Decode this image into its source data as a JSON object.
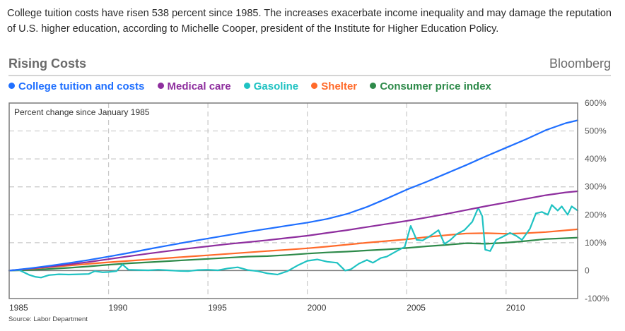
{
  "intro_text": "College tuition costs have risen 538 percent since 1985. The increases exacerbate income inequality and may damage the reputation of U.S. higher education, according to Michelle Cooper, president of the Institute for Higher Education Policy.",
  "header": {
    "title": "Rising Costs",
    "brand": "Bloomberg"
  },
  "source": "Source: Labor Department",
  "chart_data": {
    "type": "line",
    "title": "Rising Costs",
    "subtitle": "Percent change since January 1985",
    "xlabel": "",
    "ylabel": "Percent change since January 1985",
    "xlim": [
      1985,
      2013.6
    ],
    "ylim": [
      -100,
      600
    ],
    "x_ticks": [
      1985,
      1990,
      1995,
      2000,
      2005,
      2010
    ],
    "x_tick_labels": [
      "1985",
      "1990",
      "1995",
      "2000",
      "2005",
      "2010"
    ],
    "y_ticks": [
      600,
      500,
      400,
      300,
      200,
      100,
      0,
      -100
    ],
    "y_tick_labels": [
      "600%",
      "500%",
      "400%",
      "300%",
      "200%",
      "100%",
      "0",
      "-100%"
    ],
    "grid": true,
    "y_axis_side": "right",
    "legend_position": "top",
    "series": [
      {
        "name": "College tuition and costs",
        "color": "#1f6fff",
        "points": [
          [
            1985,
            0
          ],
          [
            1986,
            8
          ],
          [
            1987,
            17
          ],
          [
            1988,
            27
          ],
          [
            1989,
            38
          ],
          [
            1990,
            50
          ],
          [
            1991,
            63
          ],
          [
            1992,
            77
          ],
          [
            1993,
            90
          ],
          [
            1994,
            103
          ],
          [
            1995,
            115
          ],
          [
            1996,
            127
          ],
          [
            1997,
            139
          ],
          [
            1998,
            150
          ],
          [
            1999,
            161
          ],
          [
            2000,
            172
          ],
          [
            2001,
            185
          ],
          [
            2002,
            203
          ],
          [
            2003,
            228
          ],
          [
            2004,
            258
          ],
          [
            2005,
            290
          ],
          [
            2006,
            318
          ],
          [
            2007,
            348
          ],
          [
            2008,
            378
          ],
          [
            2009,
            410
          ],
          [
            2010,
            440
          ],
          [
            2011,
            470
          ],
          [
            2012,
            503
          ],
          [
            2013,
            528
          ],
          [
            2013.6,
            538
          ]
        ]
      },
      {
        "name": "Medical care",
        "color": "#8e2e9e",
        "points": [
          [
            1985,
            0
          ],
          [
            1986,
            7
          ],
          [
            1987,
            14
          ],
          [
            1988,
            22
          ],
          [
            1989,
            31
          ],
          [
            1990,
            41
          ],
          [
            1991,
            51
          ],
          [
            1992,
            61
          ],
          [
            1993,
            70
          ],
          [
            1994,
            79
          ],
          [
            1995,
            87
          ],
          [
            1996,
            95
          ],
          [
            1997,
            102
          ],
          [
            1998,
            109
          ],
          [
            1999,
            117
          ],
          [
            2000,
            125
          ],
          [
            2001,
            135
          ],
          [
            2002,
            145
          ],
          [
            2003,
            156
          ],
          [
            2004,
            167
          ],
          [
            2005,
            178
          ],
          [
            2006,
            190
          ],
          [
            2007,
            203
          ],
          [
            2008,
            217
          ],
          [
            2009,
            231
          ],
          [
            2010,
            244
          ],
          [
            2011,
            257
          ],
          [
            2012,
            270
          ],
          [
            2013,
            280
          ],
          [
            2013.6,
            284
          ]
        ]
      },
      {
        "name": "Gasoline",
        "color": "#1fc2c2",
        "points": [
          [
            1985,
            0
          ],
          [
            1985.5,
            2
          ],
          [
            1986,
            -15
          ],
          [
            1986.3,
            -22
          ],
          [
            1986.6,
            -25
          ],
          [
            1987,
            -16
          ],
          [
            1987.5,
            -13
          ],
          [
            1988,
            -14
          ],
          [
            1988.5,
            -13
          ],
          [
            1989,
            -12
          ],
          [
            1989.3,
            -2
          ],
          [
            1989.7,
            -6
          ],
          [
            1990,
            -5
          ],
          [
            1990.4,
            -2
          ],
          [
            1990.7,
            22
          ],
          [
            1991,
            3
          ],
          [
            1991.5,
            2
          ],
          [
            1992,
            1
          ],
          [
            1992.5,
            3
          ],
          [
            1993,
            1
          ],
          [
            1993.5,
            -1
          ],
          [
            1994,
            -2
          ],
          [
            1994.5,
            2
          ],
          [
            1995,
            3
          ],
          [
            1995.5,
            1
          ],
          [
            1996,
            8
          ],
          [
            1996.5,
            12
          ],
          [
            1997,
            2
          ],
          [
            1997.5,
            -2
          ],
          [
            1998,
            -10
          ],
          [
            1998.5,
            -14
          ],
          [
            1999,
            -2
          ],
          [
            1999.5,
            18
          ],
          [
            2000,
            35
          ],
          [
            2000.5,
            40
          ],
          [
            2001,
            32
          ],
          [
            2001.5,
            28
          ],
          [
            2001.9,
            0
          ],
          [
            2002.2,
            5
          ],
          [
            2002.6,
            25
          ],
          [
            2003,
            38
          ],
          [
            2003.3,
            28
          ],
          [
            2003.7,
            45
          ],
          [
            2004,
            50
          ],
          [
            2004.5,
            70
          ],
          [
            2004.9,
            85
          ],
          [
            2005.2,
            160
          ],
          [
            2005.5,
            110
          ],
          [
            2005.8,
            108
          ],
          [
            2006.2,
            125
          ],
          [
            2006.6,
            145
          ],
          [
            2006.9,
            95
          ],
          [
            2007.2,
            110
          ],
          [
            2007.5,
            130
          ],
          [
            2007.9,
            145
          ],
          [
            2008.3,
            175
          ],
          [
            2008.6,
            225
          ],
          [
            2008.8,
            195
          ],
          [
            2008.95,
            75
          ],
          [
            2009.2,
            70
          ],
          [
            2009.5,
            110
          ],
          [
            2009.8,
            120
          ],
          [
            2010.2,
            135
          ],
          [
            2010.5,
            125
          ],
          [
            2010.8,
            110
          ],
          [
            2011.2,
            150
          ],
          [
            2011.5,
            205
          ],
          [
            2011.8,
            210
          ],
          [
            2012.1,
            200
          ],
          [
            2012.3,
            235
          ],
          [
            2012.6,
            215
          ],
          [
            2012.8,
            230
          ],
          [
            2013.1,
            200
          ],
          [
            2013.3,
            230
          ],
          [
            2013.6,
            215
          ]
        ]
      },
      {
        "name": "Shelter",
        "color": "#ff6a2a",
        "points": [
          [
            1985,
            0
          ],
          [
            1986,
            6
          ],
          [
            1987,
            12
          ],
          [
            1988,
            18
          ],
          [
            1989,
            24
          ],
          [
            1990,
            30
          ],
          [
            1991,
            35
          ],
          [
            1992,
            40
          ],
          [
            1993,
            45
          ],
          [
            1994,
            50
          ],
          [
            1995,
            55
          ],
          [
            1996,
            60
          ],
          [
            1997,
            65
          ],
          [
            1998,
            70
          ],
          [
            1999,
            75
          ],
          [
            2000,
            80
          ],
          [
            2001,
            86
          ],
          [
            2002,
            93
          ],
          [
            2003,
            100
          ],
          [
            2004,
            106
          ],
          [
            2005,
            112
          ],
          [
            2006,
            120
          ],
          [
            2007,
            127
          ],
          [
            2008,
            133
          ],
          [
            2009,
            134
          ],
          [
            2010,
            132
          ],
          [
            2011,
            134
          ],
          [
            2012,
            138
          ],
          [
            2013,
            144
          ],
          [
            2013.6,
            148
          ]
        ]
      },
      {
        "name": "Consumer price index",
        "color": "#2e8a4a",
        "points": [
          [
            1985,
            0
          ],
          [
            1986,
            2
          ],
          [
            1987,
            6
          ],
          [
            1988,
            10
          ],
          [
            1989,
            15
          ],
          [
            1990,
            21
          ],
          [
            1991,
            26
          ],
          [
            1992,
            30
          ],
          [
            1993,
            34
          ],
          [
            1994,
            38
          ],
          [
            1995,
            42
          ],
          [
            1996,
            46
          ],
          [
            1997,
            50
          ],
          [
            1998,
            52
          ],
          [
            1999,
            56
          ],
          [
            2000,
            61
          ],
          [
            2001,
            65
          ],
          [
            2002,
            68
          ],
          [
            2003,
            72
          ],
          [
            2004,
            76
          ],
          [
            2005,
            81
          ],
          [
            2006,
            87
          ],
          [
            2007,
            92
          ],
          [
            2008,
            98
          ],
          [
            2009,
            96
          ],
          [
            2010,
            100
          ],
          [
            2011,
            106
          ],
          [
            2012,
            113
          ],
          [
            2013,
            116
          ],
          [
            2013.6,
            118
          ]
        ]
      }
    ]
  }
}
